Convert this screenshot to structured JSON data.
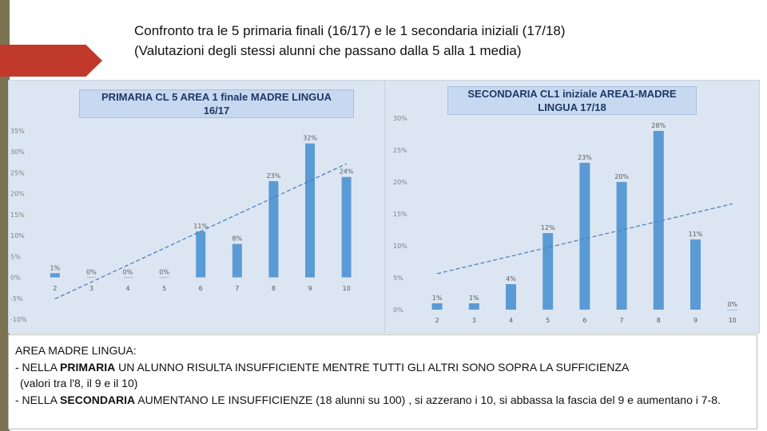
{
  "header": {
    "line1": "Confronto tra le 5 primaria finali (16/17) e le 1 secondaria iniziali (17/18)",
    "line2": "(Valutazioni degli stessi alunni che passano dalla 5 alla 1 media)"
  },
  "chart_data": [
    {
      "type": "bar",
      "title_line1": "PRIMARIA CL 5 AREA 1 finale MADRE LINGUA",
      "title_line2": "16/17",
      "categories": [
        "2",
        "3",
        "4",
        "5",
        "6",
        "7",
        "8",
        "9",
        "10"
      ],
      "values": [
        1,
        0,
        0,
        0,
        11,
        8,
        23,
        32,
        24
      ],
      "labels": [
        "1%",
        "0%",
        "0%",
        "0%",
        "11%",
        "8%",
        "23%",
        "32%",
        "24%"
      ],
      "y_ticks": [
        "35%",
        "30%",
        "25%",
        "20%",
        "15%",
        "10%",
        "5%",
        "0%",
        "-5%",
        "-10%"
      ],
      "ylim": [
        -10,
        35
      ],
      "trendline": true,
      "bar_color": "#5b9bd5"
    },
    {
      "type": "bar",
      "title_line1": "SECONDARIA CL1 iniziale AREA1-MADRE",
      "title_line2": "LINGUA 17/18",
      "categories": [
        "2",
        "3",
        "4",
        "5",
        "6",
        "7",
        "8",
        "9",
        "10"
      ],
      "values": [
        1,
        1,
        4,
        12,
        23,
        20,
        28,
        11,
        0
      ],
      "labels": [
        "1%",
        "1%",
        "4%",
        "12%",
        "23%",
        "20%",
        "28%",
        "11%",
        "0%"
      ],
      "y_ticks": [
        "30%",
        "25%",
        "20%",
        "15%",
        "10%",
        "5%",
        "0%"
      ],
      "ylim": [
        0,
        30
      ],
      "trendline": true,
      "bar_color": "#5b9bd5"
    }
  ],
  "notes": {
    "heading": "AREA MADRE LINGUA:",
    "p1_prefix": "- NELLA ",
    "p1_bold": "PRIMARIA",
    "p1_rest": " UN ALUNNO RISULTA INSUFFICIENTE MENTRE TUTTI GLI ALTRI SONO SOPRA LA SUFFICIENZA",
    "p1_cont": "(valori tra l'8, il 9 e il 10)",
    "p2_prefix": "- NELLA ",
    "p2_bold": "SECONDARIA",
    "p2_rest": " AUMENTANO LE INSUFFICIENZE (18 alunni su 100) , si azzerano i 10, si abbassa la fascia del 9 e aumentano i 7-8."
  }
}
